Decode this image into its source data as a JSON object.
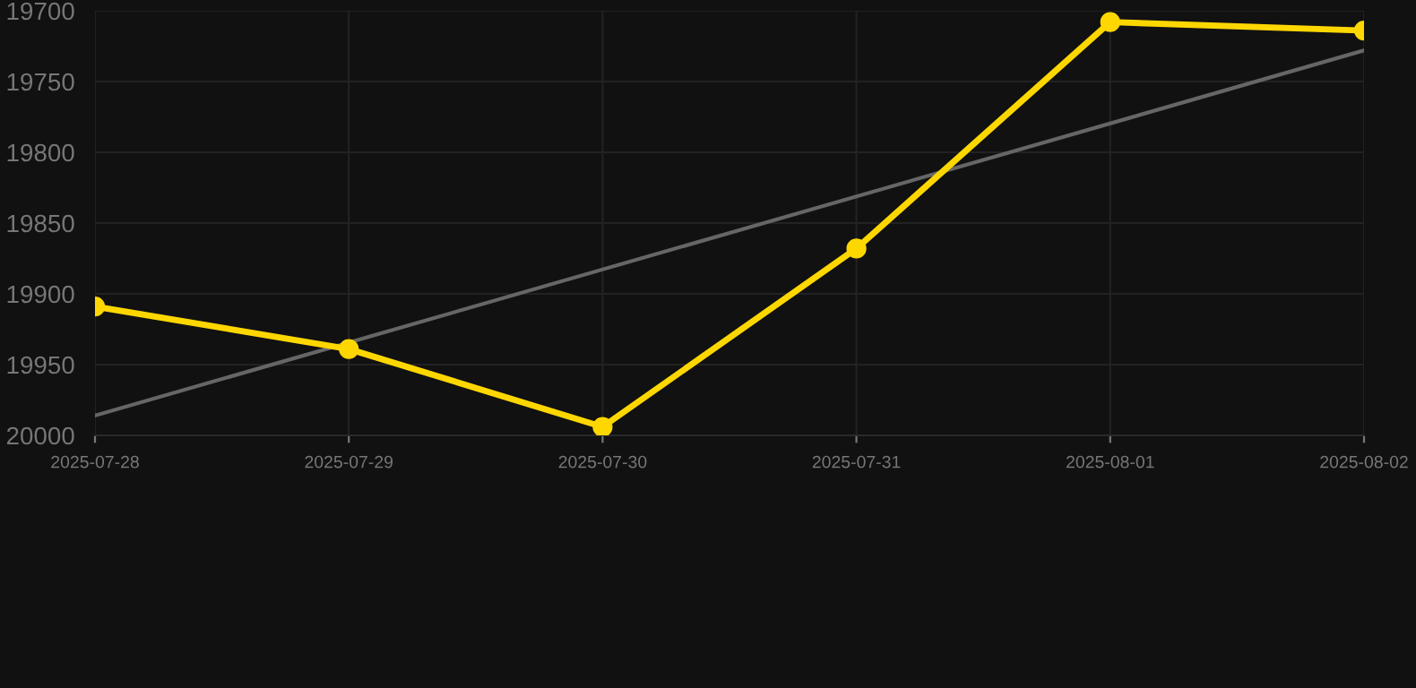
{
  "chart_data": {
    "type": "line",
    "categories": [
      "2025-07-28",
      "2025-07-29",
      "2025-07-30",
      "2025-07-31",
      "2025-08-01",
      "2025-08-02"
    ],
    "series": [
      {
        "color": "#666666",
        "marker": "none",
        "values": [
          19986,
          null,
          null,
          null,
          null,
          19728
        ]
      },
      {
        "color": "#ffd700",
        "marker": "circle",
        "values": [
          19909,
          19939,
          19994,
          19868,
          19708,
          19714
        ]
      }
    ],
    "ylim": [
      20000,
      19700
    ],
    "yticks": [
      19700,
      19750,
      19800,
      19850,
      19900,
      19950,
      20000
    ],
    "grid": true
  }
}
